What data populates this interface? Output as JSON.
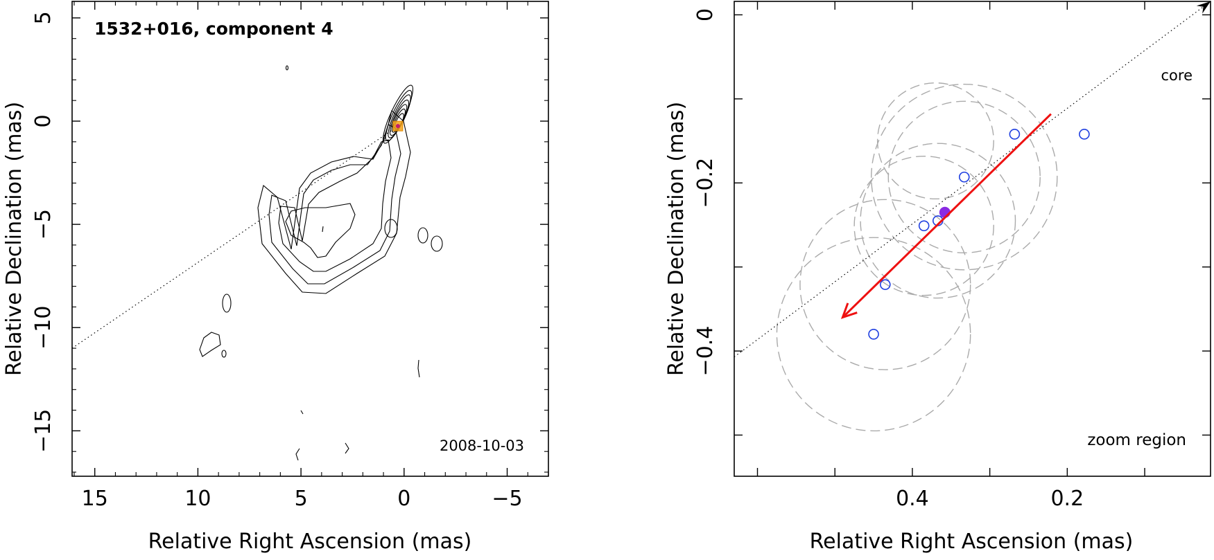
{
  "chart_data": [
    {
      "type": "contour",
      "title": "1532+016, component 4",
      "date": "2008-10-03",
      "xlabel": "Relative Right Ascension (mas)",
      "ylabel": "Relative Declination (mas)",
      "xlim": [
        16.1,
        -7.0
      ],
      "ylim": [
        -17.2,
        5.8
      ],
      "xticks": [
        15,
        10,
        5,
        0,
        -5
      ],
      "xtick_labels": [
        "15",
        "10",
        "5",
        "0",
        "−5"
      ],
      "yticks": [
        5,
        0,
        -5,
        -10,
        -15
      ],
      "ytick_labels": [
        "5",
        "0",
        "−5",
        "−10",
        "−15"
      ],
      "core_position": [
        0.3,
        -0.24
      ],
      "core_peak": [
        0.0,
        0.0
      ],
      "jet_direction_line": {
        "from": [
          16.1,
          -11.0
        ],
        "to": [
          0.3,
          -0.24
        ]
      },
      "contour_levels": 11
    },
    {
      "type": "scatter",
      "xlabel": "Relative Right Ascension (mas)",
      "ylabel": "Relative Declination (mas)",
      "xlim": [
        0.63,
        0.015
      ],
      "ylim": [
        -0.549,
        0.016
      ],
      "xticks": [
        0.4,
        0.2
      ],
      "xtick_labels": [
        "0.4",
        "0.2"
      ],
      "yticks": [
        0,
        -0.2,
        -0.4
      ],
      "ytick_labels": [
        "0",
        "−0.2",
        "−0.4"
      ],
      "label_core": "core",
      "label_region": "zoom region",
      "series": [
        {
          "name": "epoch positions",
          "marker": "open-circle",
          "color": "#1f3fe0",
          "points": [
            [
              0.45,
              -0.38
            ],
            [
              0.435,
              -0.321
            ],
            [
              0.385,
              -0.251
            ],
            [
              0.367,
              -0.245
            ],
            [
              0.333,
              -0.193
            ],
            [
              0.268,
              -0.142
            ],
            [
              0.178,
              -0.142
            ]
          ]
        },
        {
          "name": "mean position",
          "marker": "filled-circle",
          "color": "#8a2be2",
          "points": [
            [
              0.358,
              -0.235
            ]
          ]
        }
      ],
      "motion_vector": {
        "from": [
          0.221,
          -0.118
        ],
        "to": [
          0.49,
          -0.36
        ],
        "color": "#ee1111"
      },
      "core_direction_line": {
        "from": [
          0.63,
          -0.407
        ],
        "to": [
          0.015,
          0.016
        ]
      },
      "error_circles": [
        {
          "center": [
            0.45,
            -0.38
          ],
          "radius": 0.125
        },
        {
          "center": [
            0.435,
            -0.321
          ],
          "radius": 0.11
        },
        {
          "center": [
            0.385,
            -0.251
          ],
          "radius": 0.09
        },
        {
          "center": [
            0.367,
            -0.245
          ],
          "radius": 0.1
        },
        {
          "center": [
            0.333,
            -0.193
          ],
          "radius": 0.098
        },
        {
          "center": [
            0.333,
            -0.193
          ],
          "radius": 0.12
        },
        {
          "center": [
            0.37,
            -0.15
          ],
          "radius": 0.075
        }
      ]
    }
  ]
}
